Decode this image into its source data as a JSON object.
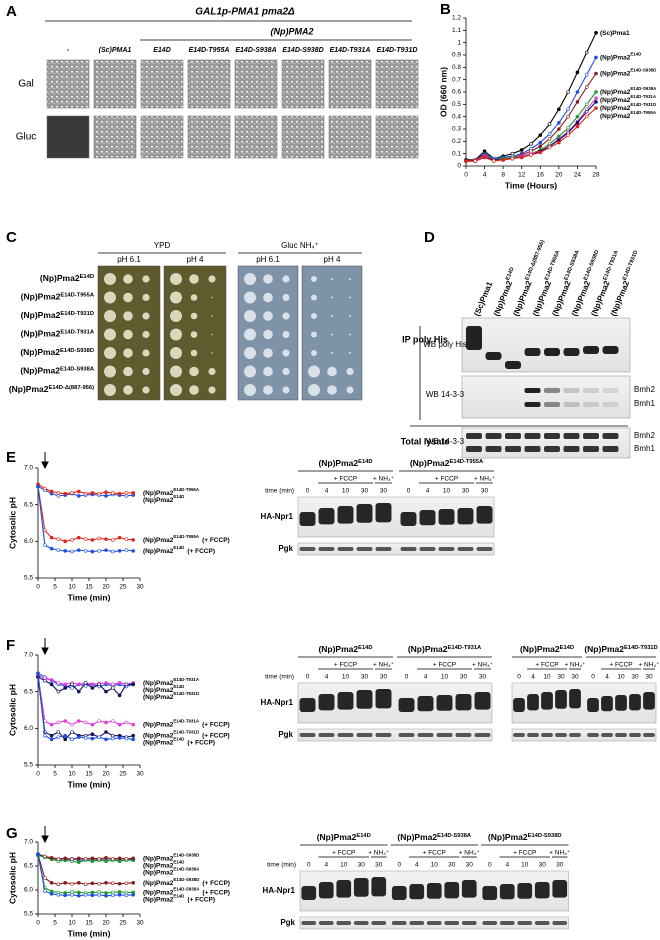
{
  "panel_labels": [
    "A",
    "B",
    "C",
    "D",
    "E",
    "F",
    "G"
  ],
  "panel_a": {
    "title": "GAL1p-PMA1 pma2Δ",
    "group": "(Np)PMA2",
    "columns": [
      "-",
      "(Sc)PMA1",
      "E14D",
      "E14D-T955A",
      "E14D-S938A",
      "E14D-S938D",
      "E14D-T931A",
      "E14D-T931D"
    ],
    "rows": [
      "Gal",
      "Gluc"
    ]
  },
  "chart_data": [
    {
      "type": "line",
      "xlabel": "Time (Hours)",
      "ylabel": "OD (660 nm)",
      "x": [
        0,
        2,
        4,
        6,
        8,
        10,
        12,
        14,
        16,
        18,
        20,
        22,
        24,
        26,
        28
      ],
      "xlim": [
        0,
        28
      ],
      "xticks": [
        0,
        4,
        8,
        12,
        16,
        20,
        24,
        28
      ],
      "ylim": [
        0,
        1.2
      ],
      "yticks": [
        0,
        0.1,
        0.2,
        0.3,
        0.4,
        0.5,
        0.6,
        0.7,
        0.8,
        0.9,
        1,
        1.1,
        1.2
      ],
      "series": [
        {
          "name": "(Sc)Pma1",
          "color": "#000000",
          "values": [
            0.05,
            0.05,
            0.12,
            0.06,
            0.08,
            0.1,
            0.13,
            0.18,
            0.25,
            0.34,
            0.46,
            0.6,
            0.76,
            0.92,
            1.08
          ]
        },
        {
          "name": "(Np)Pma2",
          "sup": "E14D",
          "color": "#1f4fe0",
          "values": [
            0.04,
            0.05,
            0.1,
            0.06,
            0.07,
            0.08,
            0.1,
            0.14,
            0.19,
            0.26,
            0.35,
            0.46,
            0.6,
            0.74,
            0.88
          ]
        },
        {
          "name": "(Np)Pma2",
          "sup": "E14D-S938D",
          "color": "#8b1a1a",
          "values": [
            0.04,
            0.05,
            0.09,
            0.05,
            0.06,
            0.07,
            0.09,
            0.12,
            0.16,
            0.22,
            0.3,
            0.4,
            0.52,
            0.64,
            0.75
          ]
        },
        {
          "name": "(Np)Pma2",
          "sup": "E14D-S938A",
          "color": "#1a9e2a",
          "values": [
            0.04,
            0.04,
            0.08,
            0.05,
            0.06,
            0.07,
            0.08,
            0.1,
            0.13,
            0.18,
            0.24,
            0.31,
            0.4,
            0.5,
            0.6
          ]
        },
        {
          "name": "(Np)Pma2",
          "sup": "E14D-T931A",
          "color": "#e040d8",
          "values": [
            0.04,
            0.04,
            0.08,
            0.05,
            0.05,
            0.06,
            0.08,
            0.1,
            0.12,
            0.16,
            0.22,
            0.28,
            0.36,
            0.46,
            0.55
          ]
        },
        {
          "name": "(Np)Pma2",
          "sup": "E14D-T931D",
          "color": "#101060",
          "values": [
            0.04,
            0.04,
            0.07,
            0.05,
            0.05,
            0.06,
            0.07,
            0.09,
            0.12,
            0.16,
            0.21,
            0.27,
            0.35,
            0.44,
            0.52
          ]
        },
        {
          "name": "(Np)Pma2",
          "sup": "E14D-T955A",
          "color": "#e0261b",
          "values": [
            0.04,
            0.04,
            0.07,
            0.04,
            0.05,
            0.06,
            0.07,
            0.09,
            0.11,
            0.15,
            0.19,
            0.25,
            0.32,
            0.4,
            0.47
          ]
        }
      ]
    },
    {
      "type": "line",
      "xlabel": "Time (min)",
      "ylabel": "Cytosolic pH",
      "x": [
        0,
        2,
        4,
        6,
        8,
        10,
        12,
        14,
        16,
        18,
        20,
        22,
        24,
        26,
        28
      ],
      "xlim": [
        0,
        30
      ],
      "xticks": [
        0,
        5,
        10,
        15,
        20,
        25,
        30
      ],
      "ylim": [
        5.5,
        7.0
      ],
      "yticks": [
        {
          "value": 5.5,
          "label": "5.5"
        },
        {
          "value": 6,
          "label": "6.0"
        },
        {
          "value": 6.5,
          "label": "6.5"
        },
        {
          "value": 7,
          "label": "7.0"
        }
      ],
      "series": [
        {
          "name": "(Np)Pma2",
          "sup": "E14D",
          "color": "#1f4fe0",
          "values": [
            6.75,
            6.7,
            6.65,
            6.62,
            6.63,
            6.65,
            6.62,
            6.63,
            6.64,
            6.63,
            6.62,
            6.64,
            6.63,
            6.62,
            6.63
          ]
        },
        {
          "name": "(Np)Pma2",
          "sup": "E14D-T955A",
          "color": "#e0261b",
          "values": [
            6.78,
            6.72,
            6.68,
            6.66,
            6.65,
            6.66,
            6.68,
            6.65,
            6.66,
            6.65,
            6.67,
            6.66,
            6.65,
            6.66,
            6.66
          ]
        },
        {
          "name": "(Np)Pma2",
          "sup": "E14D-T955A",
          "suffix": "(+ FCCP)",
          "color": "#e0261b",
          "values": [
            6.75,
            6.15,
            6.05,
            6.03,
            6.0,
            6.02,
            6.05,
            6.03,
            6.02,
            6.04,
            6.03,
            6.02,
            6.05,
            6.03,
            6.02
          ]
        },
        {
          "name": "(Np)Pma2",
          "sup": "E14D",
          "suffix": "(+ FCCP)",
          "color": "#1f4fe0",
          "values": [
            6.75,
            5.95,
            5.9,
            5.88,
            5.87,
            5.86,
            5.88,
            5.87,
            5.86,
            5.87,
            5.88,
            5.86,
            5.87,
            5.88,
            5.87
          ]
        }
      ]
    },
    {
      "type": "line",
      "xlabel": "Time (min)",
      "ylabel": "Cytosolic pH",
      "x": [
        0,
        2,
        4,
        6,
        8,
        10,
        12,
        14,
        16,
        18,
        20,
        22,
        24,
        26,
        28
      ],
      "xlim": [
        0,
        30
      ],
      "xticks": [
        0,
        5,
        10,
        15,
        20,
        25,
        30
      ],
      "ylim": [
        5.5,
        7.0
      ],
      "yticks": [
        {
          "value": 5.5,
          "label": "5.5"
        },
        {
          "value": 6,
          "label": "6.0"
        },
        {
          "value": 6.5,
          "label": "6.5"
        },
        {
          "value": 7,
          "label": "7.0"
        }
      ],
      "series": [
        {
          "name": "(Np)Pma2",
          "sup": "E14D",
          "color": "#1f4fe0",
          "values": [
            6.75,
            6.7,
            6.65,
            6.6,
            6.58,
            6.55,
            6.6,
            6.58,
            6.6,
            6.57,
            6.6,
            6.58,
            6.6,
            6.57,
            6.6
          ]
        },
        {
          "name": "(Np)Pma2",
          "sup": "E14D-T931A",
          "color": "#e040d8",
          "values": [
            6.72,
            6.68,
            6.66,
            6.62,
            6.6,
            6.62,
            6.6,
            6.62,
            6.6,
            6.61,
            6.62,
            6.6,
            6.62,
            6.6,
            6.62
          ]
        },
        {
          "name": "(Np)Pma2",
          "sup": "E14D-T931D",
          "color": "#101060",
          "values": [
            6.7,
            6.65,
            6.6,
            6.5,
            6.55,
            6.6,
            6.5,
            6.62,
            6.55,
            6.6,
            6.5,
            6.55,
            6.45,
            6.6,
            6.6
          ]
        },
        {
          "name": "(Np)Pma2",
          "sup": "E14D-T931A",
          "suffix": "(+ FCCP)",
          "color": "#e040d8",
          "values": [
            6.72,
            6.1,
            6.05,
            6.08,
            6.1,
            6.05,
            6.1,
            6.08,
            6.05,
            6.1,
            6.08,
            6.1,
            6.05,
            6.08,
            6.05
          ]
        },
        {
          "name": "(Np)Pma2",
          "sup": "E14D-T931D",
          "suffix": "(+ FCCP)",
          "color": "#101060",
          "values": [
            6.7,
            5.95,
            5.9,
            5.95,
            5.85,
            5.95,
            5.9,
            5.9,
            5.92,
            5.88,
            5.95,
            5.9,
            5.9,
            5.88,
            5.9
          ]
        },
        {
          "name": "(Np)Pma2",
          "sup": "E14D",
          "suffix": "(+ FCCP)",
          "color": "#1f4fe0",
          "values": [
            6.75,
            5.9,
            5.85,
            5.88,
            5.9,
            5.85,
            5.88,
            5.87,
            5.86,
            5.88,
            5.85,
            5.86,
            5.87,
            5.86,
            5.85
          ]
        }
      ]
    },
    {
      "type": "line",
      "xlabel": "Time (min)",
      "ylabel": "Cytosolic pH",
      "x": [
        0,
        2,
        4,
        6,
        8,
        10,
        12,
        14,
        16,
        18,
        20,
        22,
        24,
        26,
        28
      ],
      "xlim": [
        0,
        30
      ],
      "xticks": [
        0,
        5,
        10,
        15,
        20,
        25,
        30
      ],
      "ylim": [
        5.5,
        7.0
      ],
      "yticks": [
        {
          "value": 5.5,
          "label": "5.5"
        },
        {
          "value": 6,
          "label": "6.0"
        },
        {
          "value": 6.5,
          "label": "6.5"
        },
        {
          "value": 7,
          "label": "7.0"
        }
      ],
      "series": [
        {
          "name": "(Np)Pma2",
          "sup": "E14D",
          "color": "#1f4fe0",
          "values": [
            6.75,
            6.7,
            6.66,
            6.63,
            6.62,
            6.65,
            6.62,
            6.63,
            6.62,
            6.64,
            6.62,
            6.63,
            6.62,
            6.63,
            6.64
          ]
        },
        {
          "name": "(Np)Pma2",
          "sup": "E14D-S938A",
          "color": "#1a9e2a",
          "values": [
            6.72,
            6.68,
            6.64,
            6.6,
            6.62,
            6.6,
            6.58,
            6.62,
            6.6,
            6.62,
            6.6,
            6.62,
            6.6,
            6.62,
            6.62
          ]
        },
        {
          "name": "(Np)Pma2",
          "sup": "E14D-S938D",
          "color": "#8b1a1a",
          "values": [
            6.74,
            6.7,
            6.67,
            6.65,
            6.66,
            6.64,
            6.66,
            6.65,
            6.66,
            6.65,
            6.67,
            6.65,
            6.66,
            6.65,
            6.66
          ]
        },
        {
          "name": "(Np)Pma2",
          "sup": "E14D-S938D",
          "suffix": "(+ FCCP)",
          "color": "#8b1a1a",
          "values": [
            6.74,
            6.25,
            6.15,
            6.12,
            6.15,
            6.13,
            6.15,
            6.12,
            6.14,
            6.13,
            6.15,
            6.14,
            6.13,
            6.14,
            6.15
          ]
        },
        {
          "name": "(Np)Pma2",
          "sup": "E14D-S938A",
          "suffix": "(+ FCCP)",
          "color": "#1a9e2a",
          "values": [
            6.72,
            6.05,
            5.97,
            5.95,
            5.94,
            5.96,
            5.95,
            5.94,
            5.95,
            5.96,
            5.94,
            5.95,
            5.96,
            5.95,
            5.95
          ]
        },
        {
          "name": "(Np)Pma2",
          "sup": "E14D",
          "suffix": "(+ FCCP)",
          "color": "#1f4fe0",
          "values": [
            6.75,
            5.98,
            5.92,
            5.9,
            5.89,
            5.9,
            5.88,
            5.9,
            5.89,
            5.9,
            5.88,
            5.89,
            5.9,
            5.89,
            5.9
          ]
        }
      ]
    }
  ],
  "panel_c": {
    "media": [
      "YPD",
      "Gluc NH₄⁺"
    ],
    "ph": [
      "pH 6.1",
      "pH 4",
      "pH 6.1",
      "pH 4"
    ],
    "strains": [
      {
        "name": "(Np)Pma2",
        "sup": "E14D"
      },
      {
        "name": "(Np)Pma2",
        "sup": "E14D-T955A"
      },
      {
        "name": "(Np)Pma2",
        "sup": "E14D-T931D"
      },
      {
        "name": "(Np)Pma2",
        "sup": "E14D-T931A"
      },
      {
        "name": "(Np)Pma2",
        "sup": "E14D-S938D"
      },
      {
        "name": "(Np)Pma2",
        "sup": "E14D-S938A"
      },
      {
        "name": "(Np)Pma2",
        "sup": "E14D-Δ(887-956)"
      }
    ]
  },
  "panel_d": {
    "lanes": [
      {
        "name": "(Sc)Pma1"
      },
      {
        "name": "(Np)Pma2",
        "sup": "E14D"
      },
      {
        "name": "(Np)Pma2",
        "sup": "E14D-Δ(887-956)"
      },
      {
        "name": "(Np)Pma2",
        "sup": "E14D-T955A"
      },
      {
        "name": "(Np)Pma2",
        "sup": "E14D-S938A"
      },
      {
        "name": "(Np)Pma2",
        "sup": "E14D-S938D"
      },
      {
        "name": "(Np)Pma2",
        "sup": "E14D-T931A"
      },
      {
        "name": "(Np)Pma2",
        "sup": "E14D-T931D"
      }
    ],
    "ip_label": "IP poly His",
    "lysate_label": "Total lysate",
    "wb_his": "WB poly His",
    "wb_1433": "WB 14-3-3",
    "bands": [
      "Bmh2",
      "Bmh1"
    ]
  },
  "blots": [
    {
      "strains": [
        {
          "name": "(Np)Pma2",
          "sup": "E14D"
        },
        {
          "name": "(Np)Pma2",
          "sup": "E14D-T955A"
        }
      ],
      "treatments": [
        "+ FCCP",
        "+ NH₄⁺"
      ],
      "time_label": "time (min)",
      "times": [
        0,
        4,
        10,
        30,
        30
      ],
      "rows": [
        "HA-Npr1",
        "Pgk"
      ]
    },
    {
      "strains": [
        {
          "name": "(Np)Pma2",
          "sup": "E14D"
        },
        {
          "name": "(Np)Pma2",
          "sup": "E14D-T931A"
        }
      ],
      "treatments": [
        "+ FCCP",
        "+ NH₄⁺"
      ],
      "time_label": "time (min)",
      "times": [
        0,
        4,
        10,
        30,
        30
      ],
      "rows": [
        "HA-Npr1",
        "Pgk"
      ]
    },
    {
      "strains": [
        {
          "name": "(Np)Pma2",
          "sup": "E14D"
        },
        {
          "name": "(Np)Pma2",
          "sup": "E14D-T931D"
        }
      ],
      "treatments": [
        "+ FCCP",
        "+ NH₄⁺"
      ],
      "times": [
        0,
        4,
        10,
        30,
        30
      ]
    },
    {
      "strains": [
        {
          "name": "(Np)Pma2",
          "sup": "E14D"
        },
        {
          "name": "(Np)Pma2",
          "sup": "E14D-S938A"
        },
        {
          "name": "(Np)Pma2",
          "sup": "E14D-S938D"
        }
      ],
      "treatments": [
        "+ FCCP",
        "+ NH₄⁺"
      ],
      "time_label": "time (min)",
      "times": [
        0,
        4,
        10,
        30,
        30
      ],
      "rows": [
        "HA-Npr1",
        "Pgk"
      ]
    }
  ]
}
